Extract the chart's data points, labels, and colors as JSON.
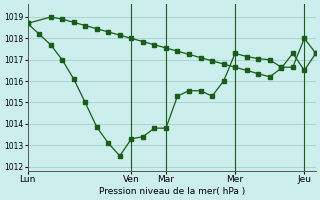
{
  "background_color": "#cceeed",
  "grid_color": "#aad4d2",
  "line_color": "#1a5c1a",
  "x_ticks_labels": [
    "Lun",
    "Ven",
    "Mar",
    "Mer",
    "Jeu"
  ],
  "x_ticks_pos": [
    0,
    9,
    12,
    18,
    24
  ],
  "xlim": [
    0,
    25
  ],
  "xlabel": "Pression niveau de la mer( hPa )",
  "ylim": [
    1011.8,
    1019.6
  ],
  "yticks": [
    1012,
    1013,
    1014,
    1015,
    1016,
    1017,
    1018,
    1019
  ],
  "series1_x": [
    0,
    2,
    3,
    4,
    5,
    6,
    7,
    8,
    9,
    10,
    11,
    12,
    13,
    14,
    15,
    16,
    17,
    18,
    19,
    20,
    21,
    22,
    23,
    24,
    25
  ],
  "series1_y": [
    1018.7,
    1019.0,
    1018.9,
    1018.75,
    1018.6,
    1018.45,
    1018.3,
    1018.15,
    1018.0,
    1017.85,
    1017.7,
    1017.55,
    1017.4,
    1017.25,
    1017.1,
    1016.95,
    1016.8,
    1016.65,
    1016.5,
    1016.35,
    1016.2,
    1016.6,
    1017.3,
    1016.5,
    1017.3
  ],
  "series2_x": [
    0,
    1,
    2,
    3,
    4,
    5,
    6,
    7,
    8,
    9,
    10,
    11,
    12,
    13,
    14,
    15,
    16,
    17,
    18,
    19,
    20,
    21,
    22,
    23,
    24,
    25
  ],
  "series2_y": [
    1018.7,
    1018.2,
    1017.7,
    1017.0,
    1016.1,
    1015.0,
    1013.85,
    1013.1,
    1012.5,
    1013.3,
    1013.4,
    1013.8,
    1013.8,
    1015.3,
    1015.55,
    1015.55,
    1015.3,
    1016.0,
    1017.3,
    1017.15,
    1017.05,
    1017.0,
    1016.65,
    1016.65,
    1018.0,
    1017.3
  ],
  "vlines": [
    9,
    12,
    18,
    24
  ]
}
